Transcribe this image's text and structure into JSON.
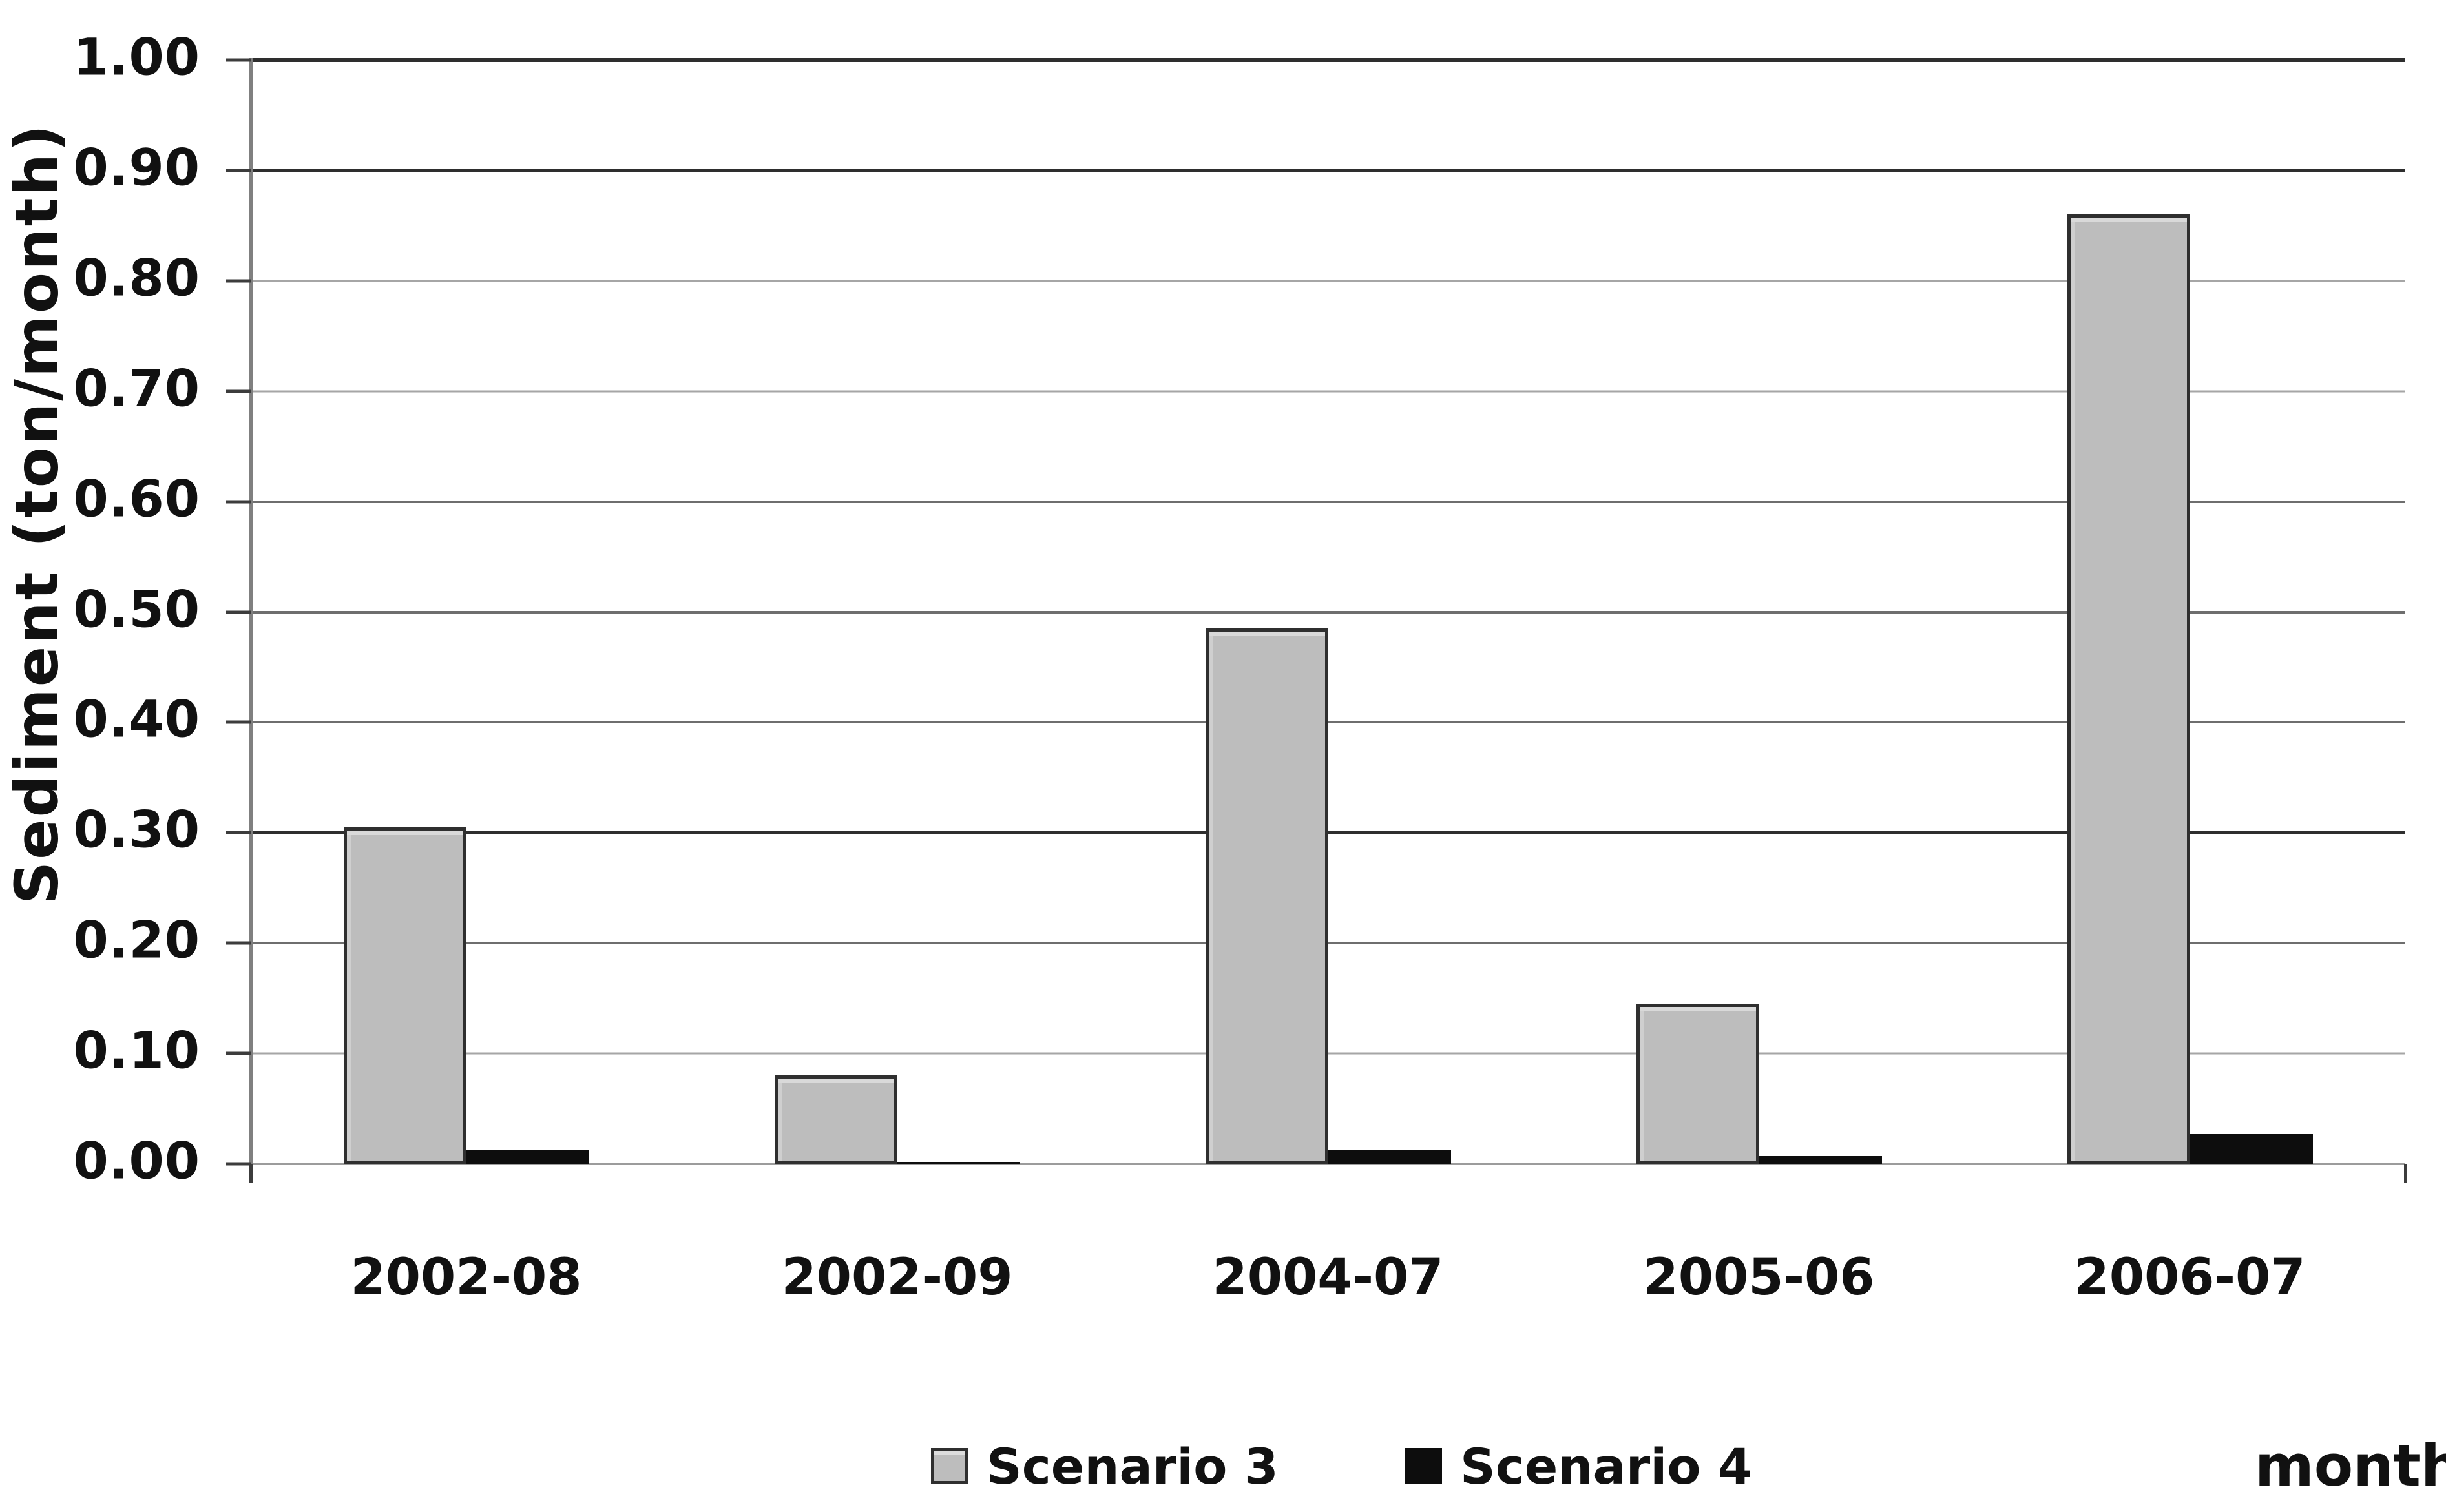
{
  "chart_data": {
    "type": "bar",
    "title": "",
    "categories": [
      "2002-08",
      "2002-09",
      "2004-07",
      "2005-06",
      "2006-07"
    ],
    "series": [
      {
        "name": "Scenario 3",
        "color": "#bdbdbd",
        "border_color": "#2f2f2f",
        "values": [
          0.305,
          0.08,
          0.485,
          0.145,
          0.86
        ]
      },
      {
        "name": "Scenario 4",
        "color": "#0d0d0d",
        "border_color": "#0d0d0d",
        "values": [
          0.013,
          0.002,
          0.013,
          0.007,
          0.027
        ]
      }
    ],
    "xlabel": "month",
    "ylabel": "Sediment (ton/month)",
    "ylim": [
      0,
      1
    ],
    "grid": true,
    "legend_position": "bottom-center",
    "yticks": [
      {
        "value": 1.0,
        "label": "1.00",
        "shade": "dark"
      },
      {
        "value": 0.9,
        "label": "0.90",
        "shade": "dark"
      },
      {
        "value": 0.8,
        "label": "0.80",
        "shade": "light"
      },
      {
        "value": 0.7,
        "label": "0.70",
        "shade": "light"
      },
      {
        "value": 0.6,
        "label": "0.60",
        "shade": "medium"
      },
      {
        "value": 0.5,
        "label": "0.50",
        "shade": "medium"
      },
      {
        "value": 0.4,
        "label": "0.40",
        "shade": "medium"
      },
      {
        "value": 0.3,
        "label": "0.30",
        "shade": "dark"
      },
      {
        "value": 0.2,
        "label": "0.20",
        "shade": "medium"
      },
      {
        "value": 0.1,
        "label": "0.10",
        "shade": "light"
      },
      {
        "value": 0.0,
        "label": "0.00",
        "shade": "baseline"
      }
    ]
  },
  "colors": {
    "background": "#ffffff",
    "text": "#111111",
    "axis": "#808080",
    "tick": "#3c3c3c",
    "grid_dark": "#2e2e2e",
    "grid_medium": "#6e6e6e",
    "grid_light": "#a6a6a6",
    "grid_baseline": "#9c9c9c"
  }
}
